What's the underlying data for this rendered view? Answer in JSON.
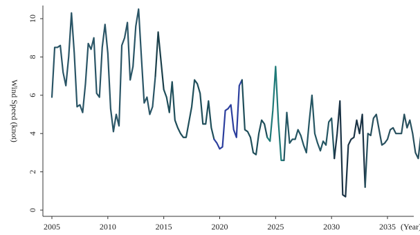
{
  "chart_data": {
    "type": "line",
    "title": "",
    "xlabel": "(Year)",
    "ylabel": "Wind Speed (knot)",
    "xlim": [
      2005,
      2038
    ],
    "ylim": [
      0,
      10.5
    ],
    "grid": false,
    "legend": "none",
    "x_ticks": [
      2005,
      2010,
      2015,
      2020,
      2025,
      2030,
      2035
    ],
    "x_tick_labels": [
      "2005",
      "2010",
      "2015",
      "2020",
      "2025",
      "2030",
      "2035"
    ],
    "y_ticks": [
      0,
      2,
      4,
      6,
      8,
      10
    ],
    "y_tick_labels": [
      "0",
      "2",
      "4",
      "6",
      "8",
      "10"
    ],
    "series": [
      {
        "color": "#1f4e5a",
        "x": [
          2005.0,
          2005.25,
          2005.5,
          2005.75,
          2006.0,
          2006.25,
          2006.5,
          2006.75,
          2007.0,
          2007.25,
          2007.5,
          2007.75,
          2008.0,
          2008.25,
          2008.5,
          2008.75,
          2009.0,
          2009.25,
          2009.5,
          2009.75,
          2010.0,
          2010.25,
          2010.5,
          2010.75,
          2011.0,
          2011.25,
          2011.5,
          2011.75,
          2012.0,
          2012.25,
          2012.5,
          2012.75,
          2013.0,
          2013.25,
          2013.5,
          2013.75,
          2014.0,
          2014.25,
          2014.5,
          2014.75,
          2015.0,
          2015.25,
          2015.5,
          2015.75,
          2016.0,
          2016.25,
          2016.5,
          2016.75,
          2017.0,
          2017.25,
          2017.5,
          2017.75,
          2018.0,
          2018.25,
          2018.5,
          2018.75,
          2019.0,
          2019.25,
          2019.5,
          2019.75,
          2020.0,
          2020.25,
          2020.5,
          2020.75,
          2021.0,
          2021.25,
          2021.5,
          2021.75,
          2022.0,
          2022.25,
          2022.5,
          2022.75,
          2023.0,
          2023.25,
          2023.5,
          2023.75,
          2024.0,
          2024.25,
          2024.5,
          2024.75,
          2025.0,
          2025.25,
          2025.5,
          2025.75,
          2026.0,
          2026.25,
          2026.5,
          2026.75,
          2027.0,
          2027.25,
          2027.5,
          2027.75,
          2028.0,
          2028.25,
          2028.5,
          2028.75,
          2029.0,
          2029.25,
          2029.5,
          2029.75,
          2030.0,
          2030.25,
          2030.5,
          2030.75,
          2031.0,
          2031.25,
          2031.5,
          2031.75,
          2032.0,
          2032.25,
          2032.5,
          2032.75,
          2033.0,
          2033.25,
          2033.5,
          2033.75,
          2034.0,
          2034.25,
          2034.5,
          2034.75,
          2035.0,
          2035.25,
          2035.5,
          2035.75,
          2036.0,
          2036.25,
          2036.5,
          2036.75,
          2037.0,
          2037.25,
          2037.5,
          2037.75,
          2038.0
        ],
        "values": [
          5.9,
          8.5,
          8.5,
          8.6,
          7.2,
          6.5,
          8.0,
          10.3,
          8.2,
          5.4,
          5.5,
          5.1,
          6.6,
          8.7,
          8.4,
          9.0,
          6.1,
          5.9,
          8.5,
          9.7,
          8.2,
          5.3,
          4.1,
          5.0,
          4.4,
          8.6,
          9.0,
          9.8,
          6.8,
          7.5,
          9.6,
          10.5,
          8.0,
          5.6,
          5.9,
          5.0,
          5.4,
          7.0,
          9.3,
          7.8,
          6.3,
          5.9,
          5.1,
          6.7,
          4.7,
          4.3,
          4.0,
          3.8,
          3.8,
          4.6,
          5.4,
          6.8,
          6.6,
          6.1,
          4.5,
          4.5,
          5.7,
          4.3,
          3.7,
          3.5,
          3.2,
          3.3,
          5.2,
          5.3,
          5.5,
          4.2,
          3.8,
          6.5,
          6.8,
          4.2,
          4.1,
          3.8,
          3.0,
          2.9,
          4.0,
          4.7,
          4.5,
          3.8,
          3.6,
          5.2,
          7.5,
          4.6,
          2.6,
          2.6,
          5.1,
          3.5,
          3.7,
          3.7,
          4.2,
          3.9,
          3.4,
          3.0,
          4.6,
          6.0,
          4.0,
          3.5,
          3.1,
          3.6,
          3.4,
          4.6,
          4.8,
          2.7,
          4.0,
          5.7,
          0.8,
          0.7,
          3.4,
          3.7,
          3.8,
          4.7,
          4.0,
          5.0,
          1.2,
          4.0,
          3.9,
          4.8,
          5.0,
          4.2,
          3.4,
          3.5,
          3.7,
          4.2,
          4.3,
          4.0,
          4.0,
          4.0,
          5.0,
          4.3,
          4.7,
          4.0,
          3.0,
          2.7,
          4.0
        ]
      }
    ],
    "segment_colors": [
      {
        "from": 2005.0,
        "to": 2014.25,
        "color": "#2a5566"
      },
      {
        "from": 2014.25,
        "to": 2015.0,
        "color": "#1b3f4a"
      },
      {
        "from": 2015.0,
        "to": 2019.5,
        "color": "#1f4e5a"
      },
      {
        "from": 2019.5,
        "to": 2022.0,
        "color": "#2c3f9e"
      },
      {
        "from": 2022.0,
        "to": 2024.25,
        "color": "#1f4e5a"
      },
      {
        "from": 2024.25,
        "to": 2025.75,
        "color": "#1f7a78"
      },
      {
        "from": 2025.75,
        "to": 2030.25,
        "color": "#255663"
      },
      {
        "from": 2030.25,
        "to": 2033.0,
        "color": "#1b3345"
      },
      {
        "from": 2033.0,
        "to": 2038.0,
        "color": "#28505e"
      }
    ]
  }
}
